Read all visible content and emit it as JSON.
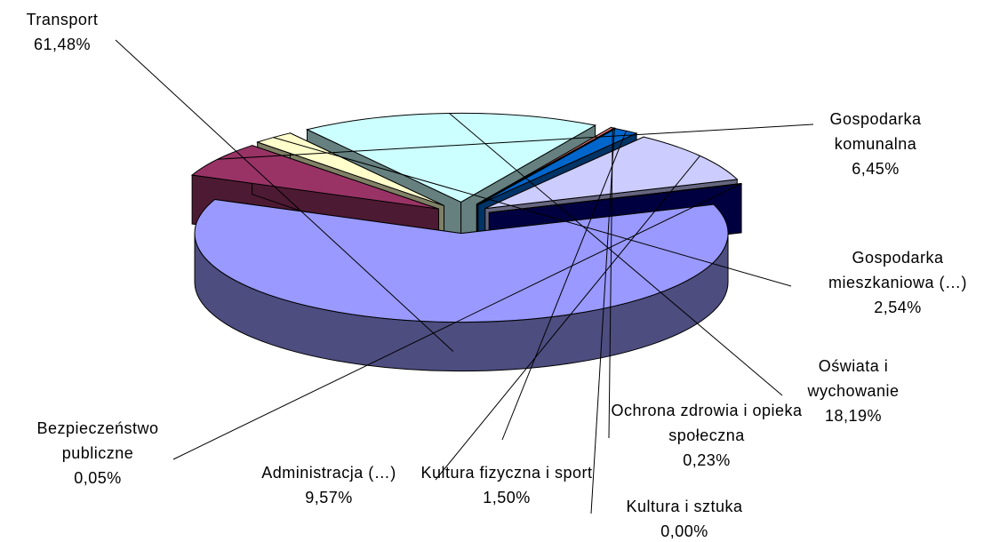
{
  "chart_data": {
    "type": "pie",
    "categories": [
      "Transport",
      "Gospodarka komunalna",
      "Gospodarka mieszkaniowa (…)",
      "Oświata i wychowanie",
      "Ochrona zdrowia i opieka społeczna",
      "Kultura i sztuka",
      "Kultura fizyczna i sport",
      "Administracja (…)",
      "Bezpieczeństwo publiczne"
    ],
    "values": [
      61.48,
      6.45,
      2.54,
      18.19,
      0.23,
      0.0,
      1.5,
      9.57,
      0.05
    ],
    "value_labels": [
      "61,48%",
      "6,45%",
      "2,54%",
      "18,19%",
      "0,23%",
      "0,00%",
      "1,50%",
      "9,57%",
      "0,05%"
    ],
    "colors": [
      "#9999ff",
      "#993366",
      "#ffffcc",
      "#ccffff",
      "#ff8080",
      "#660066",
      "#0066cc",
      "#ccccff",
      "#000080"
    ]
  }
}
